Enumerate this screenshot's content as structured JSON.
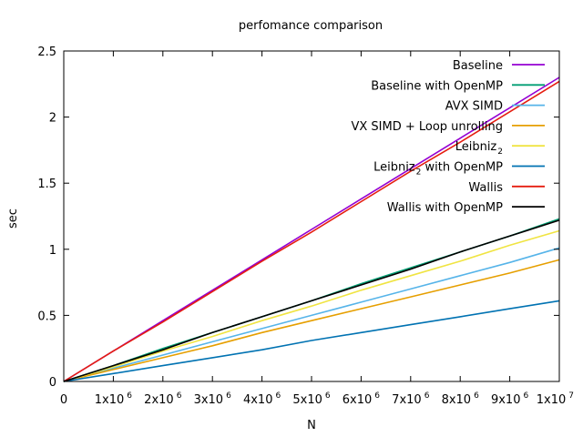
{
  "chart_data": {
    "type": "line",
    "title": "perfomance comparison",
    "xlabel": "N",
    "ylabel": "sec",
    "xlim": [
      0,
      10000000
    ],
    "ylim": [
      0,
      2.5
    ],
    "grid": false,
    "legend_position": "top-right",
    "x_ticks": [
      0,
      1000000,
      2000000,
      3000000,
      4000000,
      5000000,
      6000000,
      7000000,
      8000000,
      9000000,
      10000000
    ],
    "x_tick_labels": [
      {
        "base": "0",
        "exp": ""
      },
      {
        "base": "1x10",
        "exp": "6"
      },
      {
        "base": "2x10",
        "exp": "6"
      },
      {
        "base": "3x10",
        "exp": "6"
      },
      {
        "base": "4x10",
        "exp": "6"
      },
      {
        "base": "5x10",
        "exp": "6"
      },
      {
        "base": "6x10",
        "exp": "6"
      },
      {
        "base": "7x10",
        "exp": "6"
      },
      {
        "base": "8x10",
        "exp": "6"
      },
      {
        "base": "9x10",
        "exp": "6"
      },
      {
        "base": "1x10",
        "exp": "7"
      }
    ],
    "y_ticks": [
      0,
      0.5,
      1,
      1.5,
      2,
      2.5
    ],
    "y_tick_labels": [
      "0",
      "0.5",
      "1",
      "1.5",
      "2",
      "2.5"
    ],
    "x": [
      0,
      1000000,
      2000000,
      3000000,
      4000000,
      5000000,
      6000000,
      7000000,
      8000000,
      9000000,
      10000000
    ],
    "series": [
      {
        "name": "Baseline",
        "name_sub": "",
        "name_suffix": "",
        "color": "#9400d3",
        "values": [
          0,
          0.23,
          0.46,
          0.69,
          0.92,
          1.15,
          1.38,
          1.61,
          1.84,
          2.07,
          2.3
        ]
      },
      {
        "name": "Baseline with OpenMP",
        "name_sub": "",
        "name_suffix": "",
        "color": "#009e73",
        "values": [
          0,
          0.12,
          0.25,
          0.37,
          0.49,
          0.61,
          0.74,
          0.86,
          0.98,
          1.1,
          1.23
        ]
      },
      {
        "name": "AVX SIMD",
        "name_sub": "",
        "name_suffix": "",
        "color": "#56b4e9",
        "values": [
          0,
          0.1,
          0.2,
          0.3,
          0.4,
          0.5,
          0.6,
          0.7,
          0.8,
          0.9,
          1.01
        ]
      },
      {
        "name": "VX SIMD + Loop unrolling",
        "name_sub": "",
        "name_suffix": "",
        "color": "#e69f00",
        "values": [
          0,
          0.09,
          0.18,
          0.27,
          0.37,
          0.46,
          0.55,
          0.64,
          0.73,
          0.82,
          0.92
        ]
      },
      {
        "name": "Leibniz",
        "name_sub": "2",
        "name_suffix": "",
        "color": "#f0e442",
        "values": [
          0,
          0.11,
          0.23,
          0.34,
          0.46,
          0.57,
          0.69,
          0.8,
          0.91,
          1.03,
          1.14
        ]
      },
      {
        "name": "Leibniz",
        "name_sub": "2",
        "name_suffix": " with OpenMP",
        "color": "#0072b2",
        "values": [
          0,
          0.06,
          0.12,
          0.18,
          0.24,
          0.31,
          0.37,
          0.43,
          0.49,
          0.55,
          0.61
        ]
      },
      {
        "name": "Wallis",
        "name_sub": "",
        "name_suffix": "",
        "color": "#e51e10",
        "values": [
          0,
          0.23,
          0.45,
          0.68,
          0.91,
          1.13,
          1.36,
          1.59,
          1.81,
          2.04,
          2.27
        ]
      },
      {
        "name": "Wallis with OpenMP",
        "name_sub": "",
        "name_suffix": "",
        "color": "#000000",
        "values": [
          0,
          0.12,
          0.24,
          0.37,
          0.49,
          0.61,
          0.73,
          0.85,
          0.98,
          1.1,
          1.22
        ]
      }
    ]
  }
}
